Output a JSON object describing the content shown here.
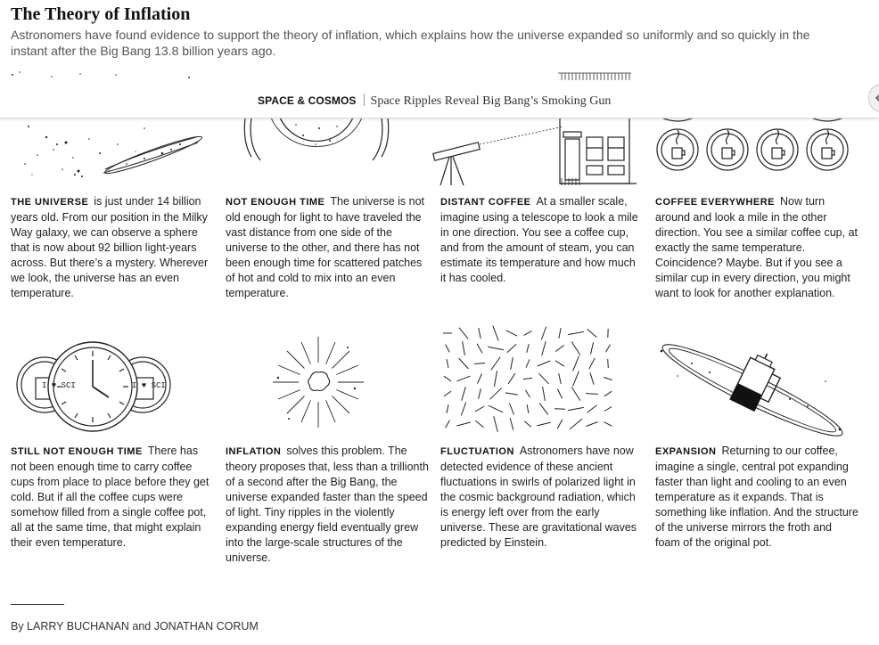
{
  "header": {
    "title": "The Theory of Inflation",
    "summary": "Astronomers have found evidence to support the theory of inflation, which explains how the universe expanded so uniformly and so quickly in the instant after the Big Bang 13.8 billion years ago."
  },
  "ribbon": {
    "section": "SPACE & COSMOS",
    "article_title": "Space Ripples Reveal Big Bang’s Smoking Gun"
  },
  "panels": [
    {
      "id": "universe",
      "lead": "THE UNIVERSE",
      "text": "is just under 14 billion years old. From our position in the Milky Way galaxy, we can observe a sphere that is now about 92 billion light-years across. But there’s a mystery. Wherever we look, the universe has an even temperature."
    },
    {
      "id": "not-enough-time",
      "lead": "NOT ENOUGH TIME",
      "text": "The universe is not old enough for light to have traveled the vast distance from one side of the universe to the other, and there has not been enough time for scattered patches of hot and cold to mix into an even temperature."
    },
    {
      "id": "distant-coffee",
      "lead": "DISTANT COFFEE",
      "text": "At a smaller scale, imagine using a telescope to look a mile in one direction. You see a coffee cup, and from the amount of steam, you can estimate its temperature and how much it has cooled."
    },
    {
      "id": "coffee-everywhere",
      "lead": "COFFEE EVERYWHERE",
      "text": "Now turn around and look a mile in the other direction. You see a similar coffee cup, at exactly the same temperature. Coincidence? Maybe. But if you see a similar cup in every direction, you might want to look for another explanation."
    },
    {
      "id": "still-not-enough-time",
      "lead": "STILL NOT ENOUGH TIME",
      "text": "There has not been enough time to carry coffee cups from place to place before they get cold. But if all the coffee cups were somehow filled from a single coffee pot, all at the same time, that might explain their even temperature."
    },
    {
      "id": "inflation",
      "lead": "INFLATION",
      "text": "solves this problem. The theory proposes that, less than a trillionth of a second after the Big Bang, the universe expanded faster than the speed of light. Tiny ripples in the violently expanding energy field eventually grew into the large-scale structures of the universe."
    },
    {
      "id": "fluctuation",
      "lead": "FLUCTUATION",
      "text": "Astronomers have now detected evidence of these ancient fluctuations in swirls of polarized light in the cosmic background radiation, which is energy left over from the early universe. These are gravitational waves predicted by Einstein."
    },
    {
      "id": "expansion",
      "lead": "EXPANSION",
      "text": "Returning to our coffee, imagine a single, central pot expanding faster than light and cooling to an even temperature as it expands. That is something like inflation. And the structure of the universe mirrors the froth and foam of the original pot."
    }
  ],
  "illustrations": {
    "mug_text_left": "I ♥ SCI",
    "mug_text_right": "I ♥ SCI"
  },
  "byline": "By LARRY BUCHANAN and JONATHAN CORUM"
}
